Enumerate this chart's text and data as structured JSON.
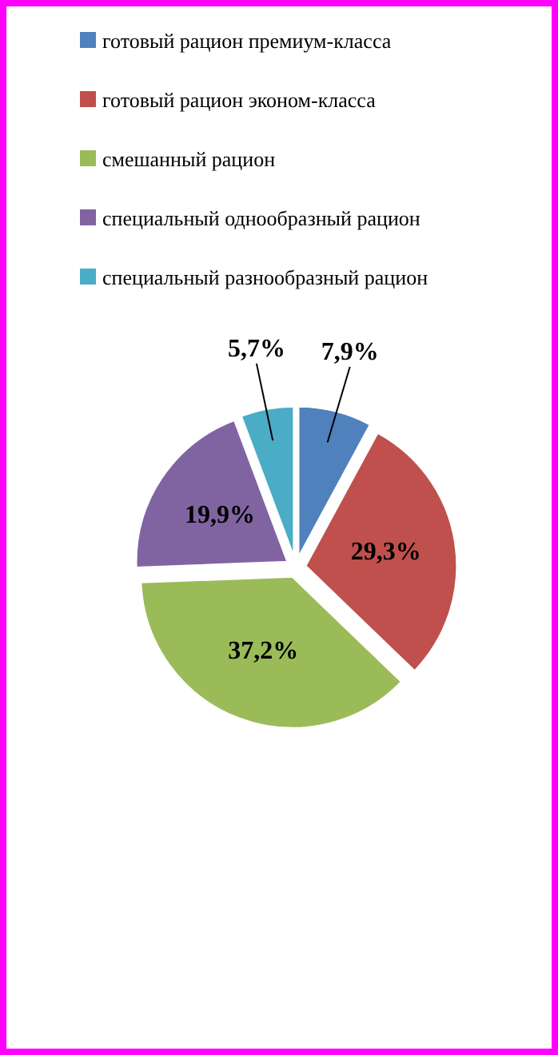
{
  "chart_data": {
    "type": "pie",
    "categories": [
      "готовый рацион премиум-класса",
      "готовый рацион эконом-класса",
      "смешанный рацион",
      "специальный однообразный рацион",
      "специальный разнообразный рацион"
    ],
    "values": [
      7.9,
      29.3,
      37.2,
      19.9,
      5.7
    ],
    "colors": [
      "#4f81bd",
      "#c0504d",
      "#9bbb59",
      "#8064a2",
      "#4bacc6"
    ],
    "value_labels": [
      "7,9%",
      "29,3%",
      "37,2%",
      "19,9%",
      "5,7%"
    ],
    "legend": "top"
  }
}
